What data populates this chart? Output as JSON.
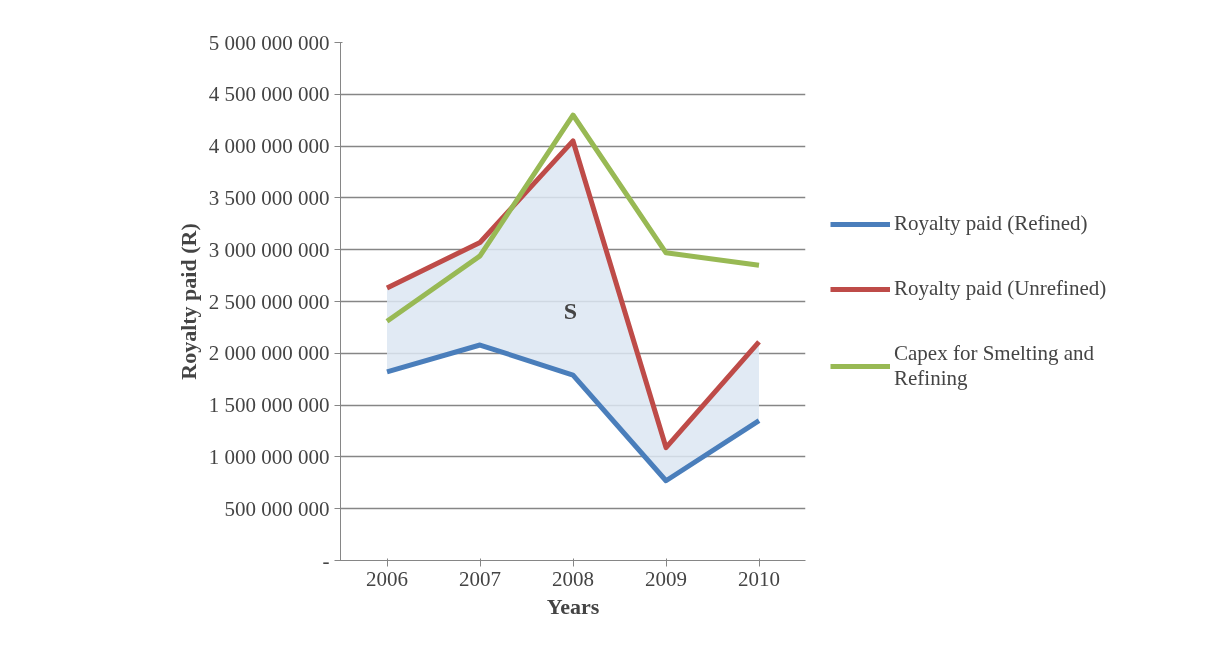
{
  "chart_data": {
    "type": "line",
    "xlabel": "Years",
    "ylabel": "Royalty paid (R)",
    "categories": [
      "2006",
      "2007",
      "2008",
      "2009",
      "2010"
    ],
    "series": [
      {
        "name": "Royalty paid (Refined)",
        "color": "#4a7ebb",
        "values": [
          1820000000,
          2080000000,
          1790000000,
          770000000,
          1350000000
        ],
        "lower": [
          1820000000,
          2080000000,
          1790000000,
          770000000,
          1350000000
        ],
        "upper": [
          2630000000,
          3070000000,
          4050000000,
          1090000000,
          2110000000
        ]
      },
      {
        "name": "Royalty paid (Unrefined)",
        "color": "#be4b48",
        "values": [
          2630000000,
          3070000000,
          4050000000,
          1090000000,
          2110000000
        ]
      },
      {
        "name": "Capex for Smelting and Refining",
        "color": "#98b954",
        "values": [
          2310000000,
          2940000000,
          4300000000,
          2970000000,
          2850000000
        ]
      }
    ],
    "ylim": [
      0,
      5000000000
    ],
    "yticks": [
      {
        "value": 0,
        "label": "-"
      },
      {
        "value": 500000000,
        "label": "500 000 000"
      },
      {
        "value": 1000000000,
        "label": "1 000 000 000"
      },
      {
        "value": 1500000000,
        "label": "1 500 000 000"
      },
      {
        "value": 2000000000,
        "label": "2 000 000 000"
      },
      {
        "value": 2500000000,
        "label": "2 500 000 000"
      },
      {
        "value": 3000000000,
        "label": "3 000 000 000"
      },
      {
        "value": 3500000000,
        "label": "3 500 000 000"
      },
      {
        "value": 4000000000,
        "label": "4 000 000 000"
      },
      {
        "value": 4500000000,
        "label": "4 500 000 000"
      },
      {
        "value": 5000000000,
        "label": "5 000 000 000"
      }
    ],
    "annotations": [
      "S"
    ],
    "grid": "y",
    "legend": "right",
    "marker": "none",
    "line_style": "solid"
  }
}
